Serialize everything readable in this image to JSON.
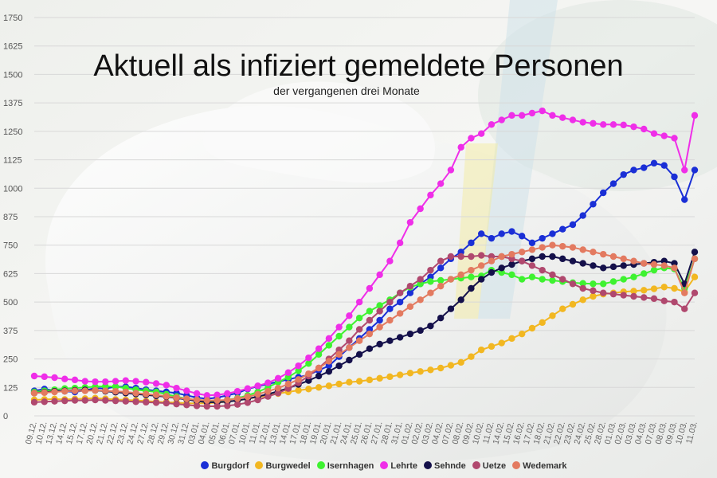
{
  "chart_data": {
    "type": "line",
    "title": "Aktuell als infiziert gemeldete Personen",
    "subtitle": "der vergangenen drei Monate",
    "ylim": [
      0,
      1750
    ],
    "yticks": [
      0,
      125,
      250,
      375,
      500,
      625,
      750,
      875,
      1000,
      1125,
      1250,
      1375,
      1500,
      1625,
      1750
    ],
    "grid": true,
    "legend_position": "bottom",
    "x_tick_labels": [
      "09.12.",
      "10.12.",
      "13.12.",
      "14.12.",
      "15.12.",
      "17.12.",
      "20.12.",
      "21.12.",
      "22.12.",
      "23.12.",
      "24.12.",
      "27.12.",
      "28.12.",
      "29.12.",
      "30.12.",
      "31.12.",
      "03.01.",
      "04.01.",
      "05.01.",
      "06.01.",
      "07.01.",
      "10.01.",
      "11.01.",
      "12.01.",
      "13.01.",
      "14.01.",
      "17.01.",
      "18.01.",
      "19.01.",
      "20.01.",
      "21.01.",
      "24.01.",
      "25.01.",
      "26.01.",
      "27.01.",
      "28.01.",
      "31.01.",
      "01.02.",
      "02.02.",
      "03.02.",
      "04.02.",
      "07.02.",
      "08.02.",
      "09.02.",
      "10.02.",
      "11.02.",
      "14.02.",
      "15.02.",
      "16.02.",
      "17.02.",
      "18.02.",
      "21.02.",
      "22.02.",
      "23.02.",
      "24.02.",
      "25.02.",
      "28.02.",
      "01.03.",
      "02.03.",
      "03.03.",
      "04.03.",
      "07.03.",
      "08.03.",
      "09.03.",
      "10.03.",
      "11.03."
    ],
    "series": [
      {
        "name": "Burgdorf",
        "color": "#1a2fd6",
        "values": [
          110,
          118,
          112,
          108,
          105,
          112,
          122,
          120,
          128,
          128,
          122,
          115,
          110,
          105,
          100,
          90,
          80,
          75,
          80,
          90,
          100,
          118,
          130,
          140,
          150,
          160,
          170,
          180,
          200,
          220,
          260,
          300,
          340,
          380,
          420,
          470,
          500,
          540,
          580,
          610,
          650,
          690,
          720,
          760,
          800,
          780,
          800,
          810,
          790,
          760,
          780,
          800,
          820,
          840,
          880,
          930,
          980,
          1020,
          1060,
          1080,
          1090,
          1110,
          1100,
          1050,
          950,
          1080
        ]
      },
      {
        "name": "Burgwedel",
        "color": "#f2b721",
        "values": [
          70,
          72,
          74,
          72,
          74,
          76,
          78,
          75,
          72,
          70,
          68,
          65,
          62,
          60,
          58,
          55,
          55,
          55,
          58,
          62,
          68,
          75,
          82,
          90,
          98,
          105,
          112,
          118,
          125,
          132,
          140,
          148,
          152,
          158,
          165,
          172,
          180,
          188,
          195,
          202,
          210,
          222,
          235,
          260,
          290,
          305,
          320,
          340,
          360,
          385,
          410,
          440,
          470,
          490,
          510,
          525,
          535,
          540,
          545,
          548,
          552,
          558,
          566,
          560,
          545,
          610
        ]
      },
      {
        "name": "Isernhagen",
        "color": "#3ef230",
        "values": [
          105,
          110,
          115,
          120,
          122,
          125,
          128,
          130,
          128,
          122,
          115,
          110,
          105,
          95,
          85,
          75,
          70,
          65,
          65,
          70,
          78,
          90,
          105,
          125,
          148,
          170,
          198,
          230,
          270,
          310,
          350,
          390,
          430,
          460,
          485,
          510,
          540,
          565,
          580,
          590,
          595,
          600,
          605,
          610,
          615,
          640,
          630,
          620,
          600,
          610,
          600,
          595,
          590,
          585,
          582,
          580,
          580,
          590,
          600,
          610,
          625,
          640,
          650,
          645,
          560,
          690
        ]
      },
      {
        "name": "Lehrte",
        "color": "#ef2ee8",
        "values": [
          175,
          172,
          168,
          162,
          158,
          152,
          150,
          150,
          152,
          155,
          152,
          148,
          142,
          135,
          122,
          110,
          98,
          90,
          92,
          98,
          108,
          120,
          132,
          145,
          165,
          190,
          220,
          255,
          295,
          340,
          390,
          440,
          500,
          560,
          620,
          680,
          760,
          850,
          910,
          970,
          1020,
          1080,
          1180,
          1220,
          1240,
          1280,
          1300,
          1320,
          1320,
          1330,
          1340,
          1320,
          1310,
          1300,
          1290,
          1285,
          1280,
          1280,
          1278,
          1270,
          1260,
          1240,
          1230,
          1220,
          1080,
          1320
        ]
      },
      {
        "name": "Sehnde",
        "color": "#14104a",
        "values": [
          100,
          104,
          108,
          110,
          112,
          114,
          112,
          108,
          104,
          100,
          96,
          92,
          88,
          84,
          78,
          72,
          65,
          60,
          60,
          62,
          68,
          75,
          85,
          95,
          108,
          122,
          138,
          155,
          175,
          195,
          220,
          245,
          270,
          295,
          315,
          330,
          345,
          360,
          375,
          395,
          430,
          470,
          510,
          560,
          600,
          630,
          650,
          665,
          680,
          690,
          700,
          700,
          690,
          680,
          670,
          660,
          650,
          655,
          660,
          665,
          670,
          675,
          680,
          670,
          580,
          720
        ]
      },
      {
        "name": "Uetze",
        "color": "#b0486e",
        "values": [
          60,
          62,
          64,
          66,
          68,
          68,
          70,
          68,
          66,
          64,
          62,
          60,
          58,
          56,
          52,
          48,
          44,
          42,
          42,
          44,
          50,
          58,
          70,
          85,
          100,
          120,
          145,
          175,
          210,
          250,
          290,
          330,
          380,
          420,
          460,
          500,
          540,
          570,
          600,
          640,
          680,
          700,
          700,
          700,
          705,
          700,
          700,
          690,
          680,
          660,
          640,
          620,
          600,
          580,
          560,
          550,
          540,
          535,
          530,
          525,
          520,
          515,
          505,
          500,
          470,
          540
        ]
      },
      {
        "name": "Wedemark",
        "color": "#e37a60",
        "values": [
          100,
          102,
          105,
          108,
          110,
          110,
          112,
          110,
          108,
          105,
          100,
          96,
          92,
          86,
          80,
          75,
          70,
          68,
          68,
          70,
          76,
          84,
          95,
          108,
          122,
          140,
          160,
          185,
          210,
          240,
          270,
          300,
          330,
          360,
          390,
          420,
          450,
          480,
          510,
          540,
          570,
          600,
          620,
          640,
          660,
          680,
          700,
          710,
          720,
          730,
          740,
          750,
          745,
          740,
          730,
          720,
          710,
          700,
          690,
          680,
          670,
          665,
          660,
          650,
          540,
          690
        ]
      }
    ]
  }
}
